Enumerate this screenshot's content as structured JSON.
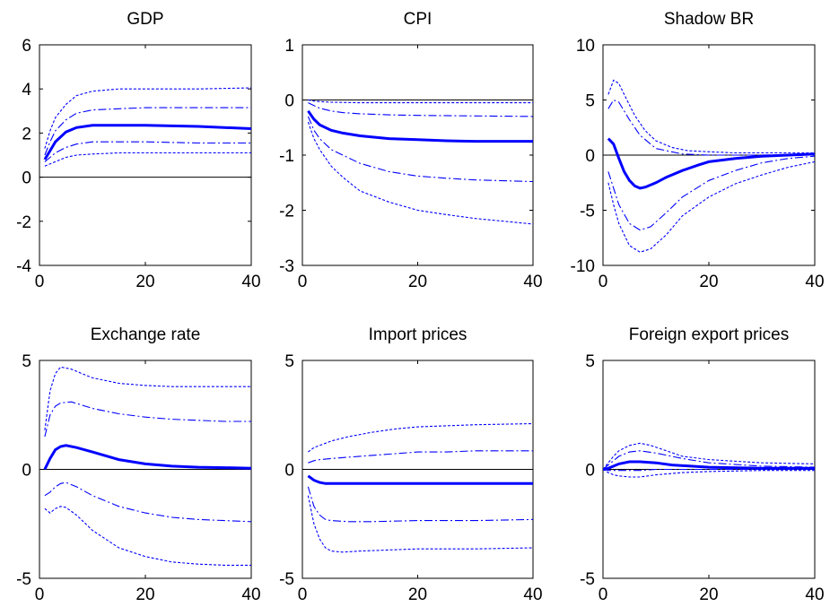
{
  "chart_data": [
    {
      "type": "line",
      "title": "GDP",
      "xlim": [
        0,
        40
      ],
      "ylim": [
        -4,
        6
      ],
      "xticks": [
        0,
        20,
        40
      ],
      "yticks": [
        -4,
        -2,
        0,
        2,
        4,
        6
      ],
      "zero_line": true,
      "series": [
        {
          "role": "median",
          "color": "#0000ff",
          "x": [
            1,
            2,
            3,
            5,
            7,
            10,
            15,
            20,
            30,
            40
          ],
          "y": [
            0.8,
            1.2,
            1.6,
            2.05,
            2.25,
            2.35,
            2.35,
            2.35,
            2.3,
            2.2
          ]
        },
        {
          "role": "inner_upper",
          "color": "#0000ff",
          "x": [
            1,
            2,
            3,
            5,
            7,
            10,
            15,
            20,
            30,
            40
          ],
          "y": [
            1.0,
            1.6,
            2.1,
            2.6,
            2.9,
            3.05,
            3.1,
            3.15,
            3.15,
            3.15
          ]
        },
        {
          "role": "inner_lower",
          "color": "#0000ff",
          "x": [
            1,
            2,
            3,
            5,
            7,
            10,
            15,
            20,
            30,
            40
          ],
          "y": [
            0.7,
            0.9,
            1.1,
            1.35,
            1.5,
            1.6,
            1.6,
            1.6,
            1.55,
            1.55
          ]
        },
        {
          "role": "outer_upper",
          "color": "#0000ff",
          "x": [
            1,
            2,
            3,
            5,
            7,
            10,
            15,
            20,
            30,
            40
          ],
          "y": [
            1.3,
            2.1,
            2.7,
            3.3,
            3.7,
            3.9,
            4.0,
            4.0,
            4.0,
            4.05
          ]
        },
        {
          "role": "outer_lower",
          "color": "#0000ff",
          "x": [
            1,
            2,
            3,
            5,
            7,
            10,
            15,
            20,
            30,
            40
          ],
          "y": [
            0.5,
            0.6,
            0.7,
            0.9,
            1.0,
            1.05,
            1.1,
            1.1,
            1.1,
            1.1
          ]
        }
      ]
    },
    {
      "type": "line",
      "title": "CPI",
      "xlim": [
        0,
        40
      ],
      "ylim": [
        -3,
        1
      ],
      "xticks": [
        0,
        20,
        40
      ],
      "yticks": [
        -3,
        -2,
        -1,
        0,
        1
      ],
      "zero_line": true,
      "series": [
        {
          "role": "median",
          "color": "#0000ff",
          "x": [
            1,
            2,
            3,
            5,
            7,
            10,
            15,
            20,
            25,
            30,
            40
          ],
          "y": [
            -0.2,
            -0.35,
            -0.45,
            -0.55,
            -0.6,
            -0.65,
            -0.7,
            -0.72,
            -0.74,
            -0.75,
            -0.75
          ]
        },
        {
          "role": "inner_upper",
          "color": "#0000ff",
          "x": [
            1,
            2,
            3,
            5,
            7,
            10,
            15,
            20,
            30,
            40
          ],
          "y": [
            -0.05,
            -0.1,
            -0.15,
            -0.2,
            -0.23,
            -0.25,
            -0.27,
            -0.28,
            -0.29,
            -0.3
          ]
        },
        {
          "role": "inner_lower",
          "color": "#0000ff",
          "x": [
            1,
            2,
            3,
            5,
            7,
            10,
            15,
            20,
            25,
            30,
            40
          ],
          "y": [
            -0.3,
            -0.55,
            -0.7,
            -0.9,
            -1.0,
            -1.15,
            -1.3,
            -1.38,
            -1.42,
            -1.45,
            -1.48
          ]
        },
        {
          "role": "outer_upper",
          "color": "#0000ff",
          "x": [
            1,
            2,
            3,
            5,
            10,
            20,
            30,
            40
          ],
          "y": [
            0.0,
            -0.02,
            -0.03,
            -0.04,
            -0.05,
            -0.05,
            -0.05,
            -0.05
          ]
        },
        {
          "role": "outer_lower",
          "color": "#0000ff",
          "x": [
            1,
            2,
            3,
            5,
            7,
            10,
            15,
            20,
            25,
            30,
            40
          ],
          "y": [
            -0.4,
            -0.7,
            -0.9,
            -1.2,
            -1.4,
            -1.65,
            -1.85,
            -2.0,
            -2.08,
            -2.15,
            -2.25
          ]
        }
      ]
    },
    {
      "type": "line",
      "title": "Shadow BR",
      "xlim": [
        0,
        40
      ],
      "ylim": [
        -10,
        10
      ],
      "xticks": [
        0,
        20,
        40
      ],
      "yticks": [
        -10,
        -5,
        0,
        5,
        10
      ],
      "zero_line": true,
      "series": [
        {
          "role": "median",
          "color": "#0000ff",
          "x": [
            1,
            2,
            3,
            4,
            5,
            6,
            7,
            8,
            10,
            12,
            15,
            18,
            20,
            25,
            30,
            35,
            40
          ],
          "y": [
            1.5,
            1.0,
            -0.3,
            -1.5,
            -2.3,
            -2.8,
            -3.0,
            -2.9,
            -2.5,
            -2.0,
            -1.4,
            -0.9,
            -0.6,
            -0.3,
            -0.1,
            0.0,
            0.1
          ]
        },
        {
          "role": "inner_upper",
          "color": "#0000ff",
          "x": [
            1,
            2,
            3,
            5,
            7,
            10,
            15,
            20,
            25,
            30,
            35,
            40
          ],
          "y": [
            4.2,
            5.0,
            4.8,
            3.2,
            1.8,
            0.6,
            0.1,
            0.0,
            0.0,
            0.0,
            0.05,
            0.1
          ]
        },
        {
          "role": "inner_lower",
          "color": "#0000ff",
          "x": [
            1,
            2,
            3,
            5,
            7,
            9,
            12,
            15,
            20,
            25,
            30,
            35,
            40
          ],
          "y": [
            -1.5,
            -3.0,
            -4.5,
            -6.2,
            -6.8,
            -6.5,
            -5.2,
            -3.8,
            -2.3,
            -1.4,
            -0.7,
            -0.3,
            -0.1
          ]
        },
        {
          "role": "outer_upper",
          "color": "#0000ff",
          "x": [
            1,
            2,
            3,
            4,
            6,
            8,
            10,
            13,
            16,
            20,
            25,
            30,
            35,
            40
          ],
          "y": [
            5.5,
            6.8,
            6.5,
            5.5,
            3.6,
            2.2,
            1.3,
            0.7,
            0.4,
            0.3,
            0.2,
            0.2,
            0.2,
            0.2
          ]
        },
        {
          "role": "outer_lower",
          "color": "#0000ff",
          "x": [
            1,
            2,
            3,
            5,
            7,
            9,
            12,
            15,
            20,
            25,
            30,
            35,
            40
          ],
          "y": [
            -2.5,
            -4.5,
            -6.2,
            -8.2,
            -8.8,
            -8.5,
            -7.2,
            -5.5,
            -3.8,
            -2.6,
            -1.8,
            -1.1,
            -0.6
          ]
        }
      ]
    },
    {
      "type": "line",
      "title": "Exchange rate",
      "xlim": [
        0,
        40
      ],
      "ylim": [
        -5,
        5
      ],
      "xticks": [
        0,
        20,
        40
      ],
      "yticks": [
        -5,
        0,
        5
      ],
      "zero_line": true,
      "series": [
        {
          "role": "median",
          "color": "#0000ff",
          "x": [
            1,
            2,
            3,
            4,
            5,
            7,
            10,
            15,
            20,
            25,
            30,
            35,
            40
          ],
          "y": [
            0.0,
            0.5,
            0.9,
            1.05,
            1.1,
            1.0,
            0.8,
            0.45,
            0.25,
            0.15,
            0.1,
            0.08,
            0.05
          ]
        },
        {
          "role": "inner_upper",
          "color": "#0000ff",
          "x": [
            1,
            2,
            3,
            4,
            6,
            8,
            10,
            15,
            20,
            25,
            30,
            35,
            40
          ],
          "y": [
            1.5,
            2.5,
            2.9,
            3.05,
            3.1,
            2.95,
            2.8,
            2.55,
            2.4,
            2.3,
            2.25,
            2.2,
            2.2
          ]
        },
        {
          "role": "inner_lower",
          "color": "#0000ff",
          "x": [
            1,
            2,
            3,
            4,
            5,
            7,
            10,
            15,
            20,
            25,
            30,
            35,
            40
          ],
          "y": [
            -1.2,
            -1.05,
            -0.8,
            -0.65,
            -0.6,
            -0.8,
            -1.2,
            -1.7,
            -2.0,
            -2.2,
            -2.3,
            -2.35,
            -2.4
          ]
        },
        {
          "role": "outer_upper",
          "color": "#0000ff",
          "x": [
            1,
            2,
            3,
            4,
            6,
            8,
            10,
            15,
            20,
            25,
            30,
            35,
            40
          ],
          "y": [
            1.8,
            3.6,
            4.4,
            4.7,
            4.6,
            4.4,
            4.2,
            3.95,
            3.85,
            3.8,
            3.8,
            3.8,
            3.8
          ]
        },
        {
          "role": "outer_lower",
          "color": "#0000ff",
          "x": [
            1,
            2,
            3,
            4,
            5,
            7,
            10,
            15,
            20,
            25,
            30,
            35,
            40
          ],
          "y": [
            -1.8,
            -2.0,
            -1.8,
            -1.7,
            -1.75,
            -2.1,
            -2.8,
            -3.6,
            -4.0,
            -4.25,
            -4.35,
            -4.4,
            -4.4
          ]
        }
      ]
    },
    {
      "type": "line",
      "title": "Import prices",
      "xlim": [
        0,
        40
      ],
      "ylim": [
        -5,
        5
      ],
      "xticks": [
        0,
        20,
        40
      ],
      "yticks": [
        -5,
        0,
        5
      ],
      "zero_line": true,
      "series": [
        {
          "role": "median",
          "color": "#0000ff",
          "x": [
            1,
            2,
            3,
            4,
            5,
            10,
            20,
            30,
            40
          ],
          "y": [
            -0.3,
            -0.5,
            -0.6,
            -0.65,
            -0.65,
            -0.65,
            -0.65,
            -0.65,
            -0.65
          ]
        },
        {
          "role": "inner_upper",
          "color": "#0000ff",
          "x": [
            1,
            2,
            3,
            5,
            10,
            15,
            20,
            25,
            30,
            40
          ],
          "y": [
            0.3,
            0.4,
            0.45,
            0.5,
            0.6,
            0.7,
            0.8,
            0.8,
            0.85,
            0.85
          ]
        },
        {
          "role": "inner_lower",
          "color": "#0000ff",
          "x": [
            1,
            2,
            3,
            4,
            5,
            8,
            12,
            20,
            30,
            40
          ],
          "y": [
            -0.8,
            -1.7,
            -2.1,
            -2.3,
            -2.35,
            -2.4,
            -2.4,
            -2.35,
            -2.35,
            -2.3
          ]
        },
        {
          "role": "outer_upper",
          "color": "#0000ff",
          "x": [
            1,
            2,
            3,
            5,
            8,
            12,
            16,
            20,
            25,
            30,
            40
          ],
          "y": [
            0.8,
            1.0,
            1.1,
            1.3,
            1.5,
            1.7,
            1.85,
            1.95,
            2.0,
            2.05,
            2.1
          ]
        },
        {
          "role": "outer_lower",
          "color": "#0000ff",
          "x": [
            1,
            2,
            3,
            4,
            5,
            7,
            10,
            15,
            20,
            30,
            40
          ],
          "y": [
            -1.2,
            -2.5,
            -3.2,
            -3.6,
            -3.75,
            -3.8,
            -3.75,
            -3.7,
            -3.65,
            -3.65,
            -3.6
          ]
        }
      ]
    },
    {
      "type": "line",
      "title": "Foreign export prices",
      "xlim": [
        0,
        40
      ],
      "ylim": [
        -5,
        5
      ],
      "xticks": [
        0,
        20,
        40
      ],
      "yticks": [
        -5,
        0,
        5
      ],
      "zero_line": true,
      "series": [
        {
          "role": "median",
          "color": "#0000ff",
          "x": [
            0,
            1,
            2,
            3,
            5,
            7,
            10,
            13,
            20,
            30,
            40
          ],
          "y": [
            0.0,
            0.05,
            0.15,
            0.25,
            0.35,
            0.35,
            0.3,
            0.2,
            0.1,
            0.05,
            0.05
          ]
        },
        {
          "role": "inner_upper",
          "color": "#0000ff",
          "x": [
            0,
            1,
            2,
            3,
            5,
            7,
            10,
            15,
            20,
            30,
            40
          ],
          "y": [
            0.0,
            0.2,
            0.4,
            0.6,
            0.8,
            0.85,
            0.75,
            0.5,
            0.3,
            0.15,
            0.1
          ]
        },
        {
          "role": "inner_lower",
          "color": "#0000ff",
          "x": [
            0,
            1,
            2,
            3,
            5,
            7,
            10,
            15,
            20,
            30,
            40
          ],
          "y": [
            0.0,
            -0.05,
            -0.05,
            -0.05,
            -0.05,
            -0.05,
            0.0,
            0.0,
            0.0,
            0.0,
            0.0
          ]
        },
        {
          "role": "outer_upper",
          "color": "#0000ff",
          "x": [
            0,
            1,
            2,
            3,
            5,
            7,
            9,
            12,
            15,
            20,
            30,
            40
          ],
          "y": [
            0.0,
            0.3,
            0.6,
            0.85,
            1.1,
            1.2,
            1.1,
            0.85,
            0.6,
            0.45,
            0.3,
            0.25
          ]
        },
        {
          "role": "outer_lower",
          "color": "#0000ff",
          "x": [
            0,
            1,
            2,
            3,
            5,
            7,
            10,
            15,
            20,
            30,
            40
          ],
          "y": [
            0.0,
            -0.15,
            -0.25,
            -0.3,
            -0.35,
            -0.35,
            -0.25,
            -0.15,
            -0.1,
            -0.05,
            -0.05
          ]
        }
      ]
    }
  ]
}
